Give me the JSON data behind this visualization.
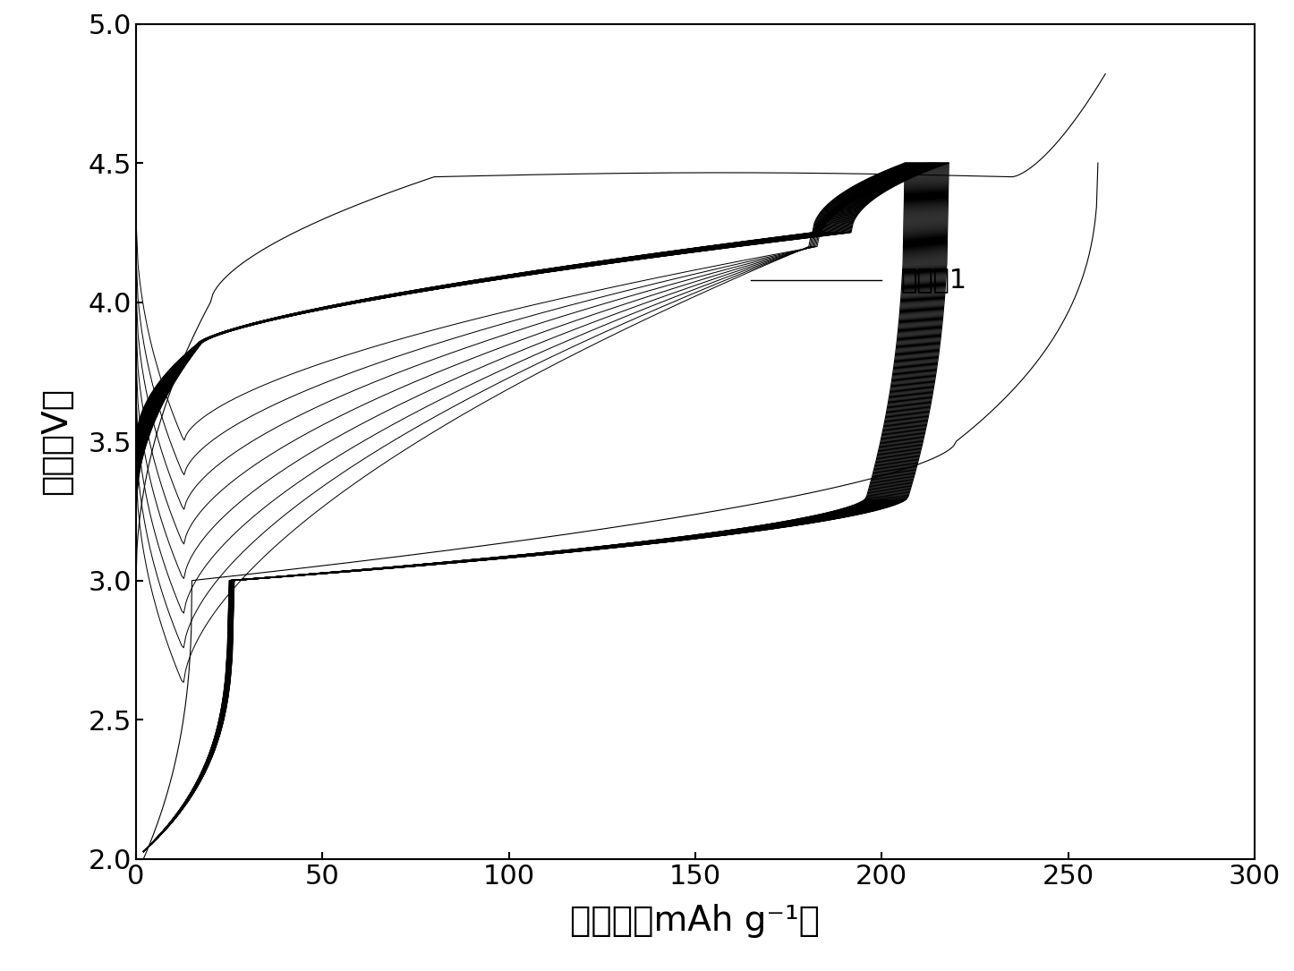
{
  "xlabel": "比容量（mAh g⁻¹）",
  "ylabel": "电压（V）",
  "legend_label": "实施例1",
  "xlim": [
    0,
    300
  ],
  "ylim": [
    2.0,
    5.0
  ],
  "xticks": [
    0,
    50,
    100,
    150,
    200,
    250,
    300
  ],
  "yticks": [
    2.0,
    2.5,
    3.0,
    3.5,
    4.0,
    4.5,
    5.0
  ],
  "n_cycles": 50,
  "linewidth": 0.8,
  "line_color": "#000000",
  "background": "#ffffff",
  "figsize": [
    14.46,
    10.85
  ],
  "dpi": 100
}
